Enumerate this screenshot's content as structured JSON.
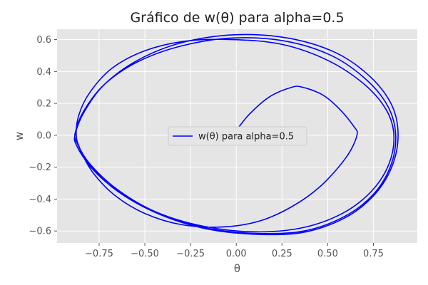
{
  "chart_data": {
    "type": "line",
    "title": "Gráfico de w(θ) para alpha=0.5",
    "xlabel": "θ",
    "ylabel": "w",
    "xlim": [
      -0.98,
      0.99
    ],
    "ylim": [
      -0.675,
      0.665
    ],
    "x_ticks": [
      -0.75,
      -0.5,
      -0.25,
      0.0,
      0.25,
      0.5,
      0.75
    ],
    "x_tick_labels": [
      "−0.75",
      "−0.50",
      "−0.25",
      "0.00",
      "0.25",
      "0.50",
      "0.75"
    ],
    "y_ticks": [
      -0.6,
      -0.4,
      -0.2,
      0.0,
      0.2,
      0.4,
      0.6
    ],
    "y_tick_labels": [
      "−0.6",
      "−0.4",
      "−0.2",
      "0.0",
      "0.2",
      "0.4",
      "0.6"
    ],
    "grid": true,
    "legend_position": "center",
    "series": [
      {
        "name": "w(θ) para alpha=0.5",
        "color": "#0000ff",
        "x": [
          0.0,
          0.07,
          0.18,
          0.3,
          0.36,
          0.47,
          0.56,
          0.64,
          0.66,
          0.6,
          0.46,
          0.3,
          0.12,
          -0.08,
          -0.3,
          -0.5,
          -0.66,
          -0.78,
          -0.85,
          -0.875,
          -0.86,
          -0.8,
          -0.68,
          -0.5,
          -0.28,
          -0.02,
          0.25,
          0.5,
          0.7,
          0.82,
          0.862,
          0.835,
          0.74,
          0.58,
          0.36,
          0.1,
          -0.18,
          -0.44,
          -0.65,
          -0.8,
          -0.87,
          -0.88,
          -0.83,
          -0.72,
          -0.54,
          -0.3,
          -0.02,
          0.27,
          0.52,
          0.71,
          0.83,
          0.872,
          0.845,
          0.75,
          0.59,
          0.37,
          0.11,
          -0.17,
          -0.43,
          -0.65,
          -0.8,
          -0.875,
          -0.88,
          -0.83,
          -0.72,
          -0.54,
          -0.3,
          -0.01,
          0.28,
          0.54,
          0.73,
          0.85,
          0.885,
          0.85,
          0.75,
          0.59,
          0.36,
          0.09,
          -0.19,
          -0.45,
          -0.66,
          -0.81,
          -0.87
        ],
        "y": [
          0.03,
          0.13,
          0.24,
          0.3,
          0.302,
          0.255,
          0.17,
          0.06,
          0.0,
          -0.14,
          -0.32,
          -0.45,
          -0.54,
          -0.575,
          -0.56,
          -0.49,
          -0.38,
          -0.24,
          -0.1,
          0.0,
          0.13,
          0.27,
          0.42,
          0.53,
          0.59,
          0.6,
          0.57,
          0.47,
          0.32,
          0.16,
          0.0,
          -0.18,
          -0.35,
          -0.49,
          -0.58,
          -0.605,
          -0.57,
          -0.48,
          -0.34,
          -0.18,
          -0.05,
          0.02,
          0.16,
          0.32,
          0.46,
          0.56,
          0.61,
          0.59,
          0.5,
          0.35,
          0.18,
          0.0,
          -0.19,
          -0.37,
          -0.51,
          -0.6,
          -0.615,
          -0.58,
          -0.49,
          -0.35,
          -0.19,
          -0.06,
          0.01,
          0.15,
          0.32,
          0.47,
          0.58,
          0.63,
          0.61,
          0.52,
          0.37,
          0.19,
          0.0,
          -0.2,
          -0.38,
          -0.52,
          -0.61,
          -0.62,
          -0.58,
          -0.48,
          -0.34,
          -0.18,
          -0.04
        ]
      }
    ]
  }
}
